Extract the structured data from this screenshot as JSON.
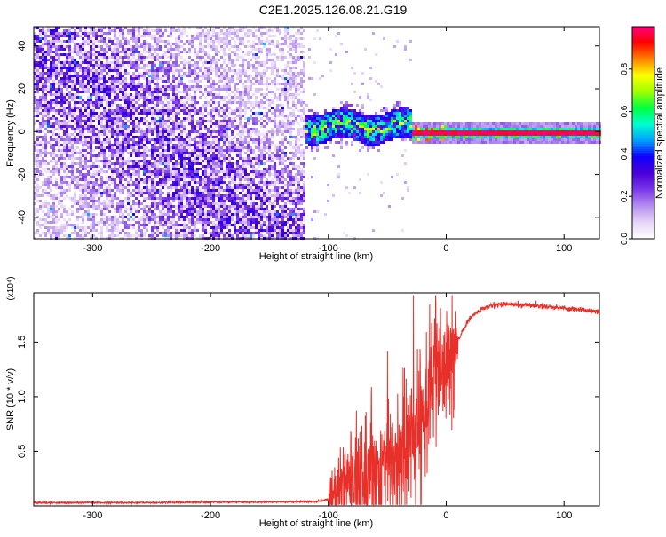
{
  "title": "C2E1.2025.126.08.21.G19",
  "colors": {
    "snr_line": "#e8302a",
    "colormap": [
      "#ffffff",
      "#e6d4f7",
      "#b48ef0",
      "#7a36e8",
      "#4a00d8",
      "#1000ff",
      "#00a0ff",
      "#00ffd0",
      "#00ff40",
      "#a0ff00",
      "#ffff00",
      "#ff8000",
      "#ff0000",
      "#ff0080"
    ]
  },
  "chart_data": [
    {
      "type": "heatmap",
      "xlabel": "Height of straight line (km)",
      "ylabel": "Frequency (Hz)",
      "xlim": [
        -350,
        130
      ],
      "ylim": [
        -50,
        49
      ],
      "xticks": [
        -300,
        -200,
        -100,
        0,
        100
      ],
      "yticks": [
        -40,
        -20,
        0,
        20,
        40
      ],
      "colorbar": {
        "label": "Normalized spectral amplitude",
        "range": [
          0,
          1
        ],
        "ticks": [
          "0.0",
          "0.2",
          "0.4",
          "0.6",
          "0.8"
        ]
      },
      "description_regions": [
        {
          "x_range": [
            -350,
            -120
          ],
          "freq_range": [
            -50,
            49
          ],
          "amplitude": "low (0.05-0.25), scattered"
        },
        {
          "x_range": [
            -120,
            -30
          ],
          "freq_center": 3,
          "freq_halfwidth": 7,
          "amplitude": "0.3-0.9, noisy"
        },
        {
          "x_range": [
            -30,
            130
          ],
          "freq_center": 0,
          "freq_halfwidth": 3,
          "amplitude": "0.95-1.0, narrow"
        }
      ]
    },
    {
      "type": "line",
      "xlabel": "Height of straight line (km)",
      "ylabel": "SNR (10 * v/v)",
      "yscale_note": "(x10⁴)",
      "xlim": [
        -350,
        130
      ],
      "ylim": [
        0,
        1.95
      ],
      "xticks": [
        -300,
        -200,
        -100,
        0,
        100
      ],
      "yticks": [
        0.5,
        1.0,
        1.5
      ],
      "ytick_labels": [
        "0.5",
        "1.0",
        "1.5"
      ],
      "series": [
        {
          "x": [
            -350,
            -300,
            -250,
            -200,
            -150,
            -110,
            -100,
            -90,
            -80,
            -70,
            -60,
            -50,
            -40,
            -30,
            -20,
            -15,
            -10,
            -5,
            0,
            5,
            10,
            20,
            30,
            40,
            50,
            60,
            70,
            80,
            90,
            100,
            110,
            120,
            130
          ],
          "y": [
            0.03,
            0.03,
            0.03,
            0.035,
            0.035,
            0.04,
            0.06,
            0.12,
            0.22,
            0.28,
            0.33,
            0.38,
            0.45,
            0.55,
            0.85,
            1.05,
            1.15,
            1.2,
            1.22,
            1.32,
            1.52,
            1.72,
            1.8,
            1.84,
            1.85,
            1.84,
            1.84,
            1.83,
            1.82,
            1.81,
            1.8,
            1.79,
            1.78
          ]
        }
      ]
    }
  ]
}
